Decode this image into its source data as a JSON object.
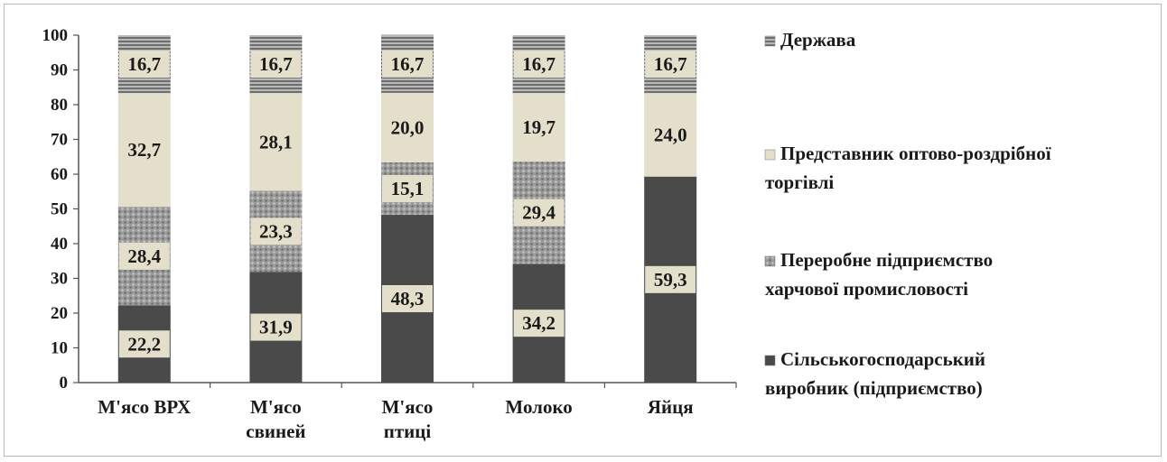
{
  "chart_data": {
    "type": "bar",
    "stacked": true,
    "categories": [
      [
        "М'ясо ВРХ"
      ],
      [
        "М'ясо",
        "свиней"
      ],
      [
        "М'ясо",
        "птиці"
      ],
      [
        "Молоко"
      ],
      [
        "Яйця"
      ]
    ],
    "ylim": [
      0,
      100
    ],
    "yticks": [
      "0",
      "10",
      "20",
      "30",
      "40",
      "50",
      "60",
      "70",
      "80",
      "90",
      "100"
    ],
    "grid": false,
    "legend_position": "right",
    "series": [
      {
        "name": "Сільськогосподарський виробник (підприємство)",
        "legend_lines": [
          "Сільськогосподарський",
          "виробник (підприємство)"
        ],
        "values": [
          22.2,
          31.9,
          48.3,
          34.2,
          59.3
        ],
        "labels": [
          "22,2",
          "31,9",
          "48,3",
          "34,2",
          "59,3"
        ],
        "color": "#4a4a4a",
        "pattern": "solid"
      },
      {
        "name": "Переробне підприємство харчової промисловості",
        "legend_lines": [
          "Переробне підприємство",
          "харчової промисловості"
        ],
        "values": [
          28.4,
          23.3,
          15.1,
          29.4,
          0
        ],
        "labels": [
          "28,4",
          "23,3",
          "15,1",
          "29,4",
          ""
        ],
        "color": "#8e8e8e",
        "pattern": "dots"
      },
      {
        "name": "Представник оптово-роздрібної торгівлі",
        "legend_lines": [
          "Представник оптово-роздрібної",
          "торгівлі"
        ],
        "values": [
          32.7,
          28.1,
          20.0,
          19.7,
          24.0
        ],
        "labels": [
          "32,7",
          "28,1",
          "20,0",
          "19,7",
          "24,0"
        ],
        "color": "#e3dfcb",
        "pattern": "solid"
      },
      {
        "name": "Держава",
        "legend_lines": [
          "Держава"
        ],
        "values": [
          16.7,
          16.7,
          16.7,
          16.7,
          16.7
        ],
        "labels": [
          "16,7",
          "16,7",
          "16,7",
          "16,7",
          "16,7"
        ],
        "color": "#8a8a8a",
        "pattern": "hstripes"
      }
    ]
  }
}
